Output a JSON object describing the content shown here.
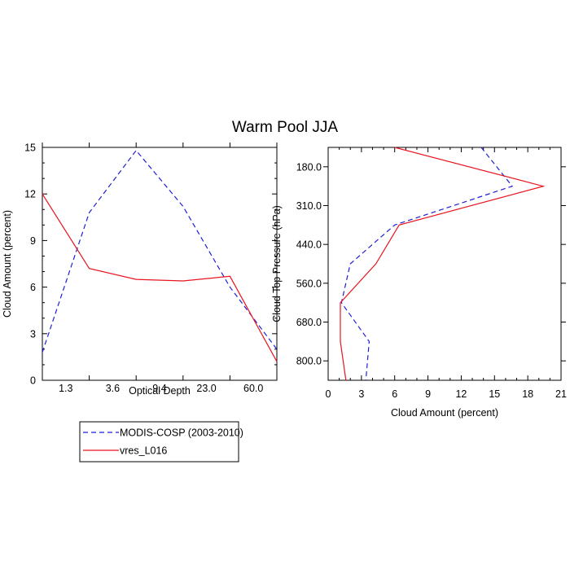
{
  "title": "Warm Pool JJA",
  "colors": {
    "obs": "#1f1fd6",
    "model": "#e8141e",
    "axis": "#000000"
  },
  "legend": {
    "entries": [
      {
        "label": "MODIS-COSP (2003-2010)",
        "style": "dashed",
        "color": "#1f1fd6"
      },
      {
        "label": "vres_L016",
        "style": "solid",
        "color": "#e8141e"
      }
    ]
  },
  "chart_data": [
    {
      "type": "line",
      "xlabel": "Optical Depth",
      "ylabel": "Cloud Amount (percent)",
      "ylim": [
        0,
        15
      ],
      "yticks": [
        0,
        3,
        6,
        9,
        12,
        15
      ],
      "xtick_labels": [
        "1.3",
        "3.6",
        "9.4",
        "23.0",
        "60.0"
      ],
      "x_bins": 5,
      "series": [
        {
          "name": "MODIS-COSP (2003-2010)",
          "values": [
            1.8,
            10.8,
            14.8,
            11.2,
            6.0,
            2.0
          ]
        },
        {
          "name": "vres_L016",
          "values": [
            12.0,
            7.2,
            6.5,
            6.4,
            6.7,
            1.2
          ]
        }
      ]
    },
    {
      "type": "line",
      "xlabel": "Cloud Amount (percent)",
      "ylabel": "Cloud Top Pressure (hPa)",
      "xlim": [
        0,
        21
      ],
      "xticks": [
        0,
        3,
        6,
        9,
        12,
        15,
        18,
        21
      ],
      "ytick_labels": [
        "180.0",
        "310.0",
        "440.0",
        "560.0",
        "680.0",
        "800.0"
      ],
      "y_bins": 6,
      "series": [
        {
          "name": "MODIS-COSP (2003-2010)",
          "values": [
            13.8,
            16.6,
            6.0,
            2.0,
            1.2,
            3.7,
            3.4
          ]
        },
        {
          "name": "vres_L016",
          "values": [
            6.0,
            19.4,
            6.4,
            4.3,
            1.1,
            1.1,
            1.6
          ]
        }
      ]
    }
  ]
}
